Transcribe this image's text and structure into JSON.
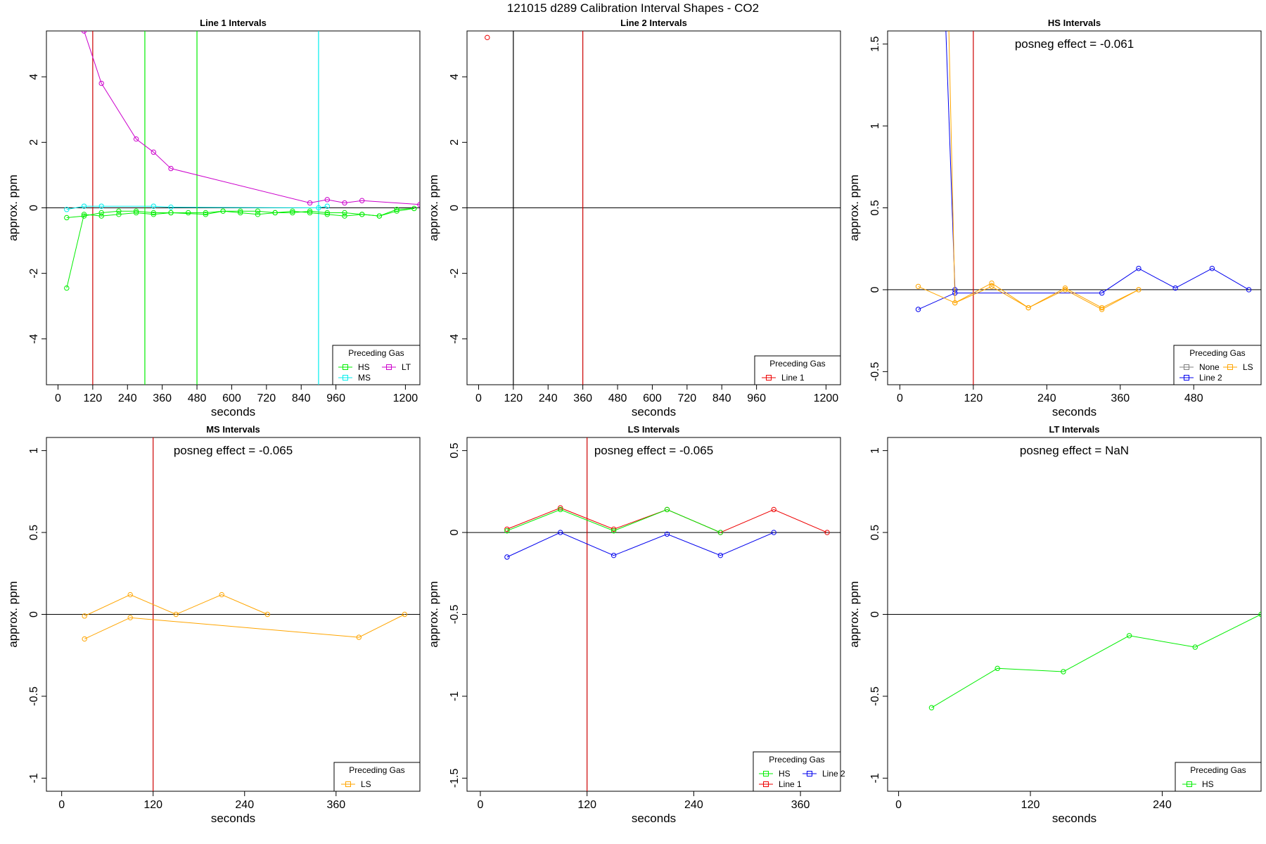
{
  "figure": {
    "title": "121015  d289   Calibration Interval Shapes - CO2"
  },
  "colors": {
    "HS": "#00ee00",
    "MS": "#00eeee",
    "LT": "#cc00cc",
    "LS": "#ffa500",
    "Line 1": "#ee0000",
    "Line 2": "#0000ee",
    "None": "#808080",
    "refline": "#cc0000",
    "hline": "#000000"
  },
  "chart_data": [
    {
      "type": "line",
      "title": "Line 1 Intervals",
      "xlabel": "seconds",
      "ylabel": "approx. ppm",
      "xlim": [
        -40,
        1250
      ],
      "ylim": [
        -5.4,
        5.4
      ],
      "xticks": [
        0,
        120,
        240,
        360,
        480,
        600,
        720,
        840,
        960,
        1200
      ],
      "yticks": [
        -4,
        -2,
        0,
        2,
        4
      ],
      "hline": 0,
      "vlines": [
        {
          "x": 120,
          "color": "refline"
        },
        {
          "x": 300,
          "color": "HS"
        },
        {
          "x": 480,
          "color": "HS"
        },
        {
          "x": 900,
          "color": "MS"
        }
      ],
      "series": [
        {
          "name": "LT",
          "color": "LT",
          "x": [
            90,
            150,
            270,
            330,
            390,
            870,
            930,
            990,
            1050,
            1250
          ],
          "y": [
            5.4,
            3.8,
            2.1,
            1.7,
            1.2,
            0.15,
            0.25,
            0.15,
            0.22,
            0.1
          ]
        },
        {
          "name": "MS",
          "color": "MS",
          "x": [
            30,
            90,
            150,
            330,
            390,
            900,
            930
          ],
          "y": [
            -0.05,
            0.05,
            0.05,
            0.05,
            0.02,
            0.0,
            0.05
          ]
        },
        {
          "name": "HS",
          "color": "HS",
          "x": [
            30,
            90,
            150,
            210,
            270,
            330,
            390,
            510,
            570,
            630,
            690,
            750,
            810,
            870,
            930,
            990,
            1050,
            1110,
            1170,
            1230
          ],
          "y": [
            -2.45,
            -0.2,
            -0.25,
            -0.2,
            -0.15,
            -0.2,
            -0.15,
            -0.2,
            -0.1,
            -0.15,
            -0.2,
            -0.15,
            -0.1,
            -0.15,
            -0.2,
            -0.25,
            -0.2,
            -0.25,
            -0.1,
            -0.02
          ]
        },
        {
          "name": "HS",
          "color": "HS",
          "x": [
            30,
            90,
            150,
            210,
            270,
            330,
            390,
            450,
            510,
            570,
            630,
            690,
            750,
            810,
            870,
            930,
            990,
            1050,
            1110,
            1170,
            1230
          ],
          "y": [
            -0.3,
            -0.25,
            -0.15,
            -0.1,
            -0.1,
            -0.15,
            -0.15,
            -0.15,
            -0.15,
            -0.1,
            -0.1,
            -0.1,
            -0.15,
            -0.15,
            -0.1,
            -0.15,
            -0.15,
            -0.2,
            -0.25,
            -0.05,
            -0.02
          ]
        }
      ],
      "legend": {
        "title": "Preceding Gas",
        "position": "bottom-right",
        "rows": [
          [
            "HS",
            "LT"
          ],
          [
            "MS"
          ]
        ]
      },
      "annotation": ""
    },
    {
      "type": "line",
      "title": "Line 2 Intervals",
      "xlabel": "seconds",
      "ylabel": "approx. ppm",
      "xlim": [
        -40,
        1250
      ],
      "ylim": [
        -5.4,
        5.4
      ],
      "xticks": [
        0,
        120,
        240,
        360,
        480,
        600,
        720,
        840,
        960,
        1200
      ],
      "yticks": [
        -4,
        -2,
        0,
        2,
        4
      ],
      "hline": 0,
      "vlines": [
        {
          "x": 120,
          "color": "hline"
        },
        {
          "x": 360,
          "color": "refline"
        }
      ],
      "series": [
        {
          "name": "Line 1",
          "color": "Line 1",
          "x": [
            30
          ],
          "y": [
            5.2
          ]
        }
      ],
      "legend": {
        "title": "Preceding Gas",
        "position": "bottom-right",
        "rows": [
          [
            "Line 1"
          ]
        ]
      },
      "annotation": ""
    },
    {
      "type": "line",
      "title": "HS Intervals",
      "xlabel": "seconds",
      "ylabel": "approx. ppm",
      "xlim": [
        -20,
        590
      ],
      "ylim": [
        -0.58,
        1.58
      ],
      "xticks": [
        0,
        120,
        240,
        360,
        480
      ],
      "yticks": [
        -0.5,
        0.0,
        0.5,
        1.0,
        1.5
      ],
      "hline": 0,
      "vlines": [
        {
          "x": 120,
          "color": "refline"
        }
      ],
      "series": [
        {
          "name": "Line 2",
          "color": "Line 2",
          "x": [
            30,
            90,
            330,
            390,
            450,
            510,
            570
          ],
          "y": [
            -0.12,
            -0.02,
            -0.02,
            0.13,
            0.01,
            0.13,
            0.0
          ]
        },
        {
          "name": "Line 2",
          "color": "Line 2",
          "x": [
            75,
            90
          ],
          "y": [
            1.6,
            0.0
          ]
        },
        {
          "name": "LS",
          "color": "LS",
          "x": [
            30,
            90,
            150,
            210,
            270,
            330,
            390
          ],
          "y": [
            0.02,
            -0.08,
            0.04,
            -0.11,
            0.01,
            -0.11,
            0.0
          ]
        },
        {
          "name": "LS",
          "color": "LS",
          "x": [
            80,
            90,
            150,
            210,
            270,
            330,
            390
          ],
          "y": [
            1.6,
            -0.08,
            0.02,
            -0.11,
            0.0,
            -0.12,
            0.0
          ]
        }
      ],
      "legend": {
        "title": "Preceding Gas",
        "position": "bottom-right",
        "rows": [
          [
            "None",
            "LS"
          ],
          [
            "Line 2"
          ]
        ]
      },
      "annotation": "posneg effect = -0.061"
    },
    {
      "type": "line",
      "title": "MS Intervals",
      "xlabel": "seconds",
      "ylabel": "approx. ppm",
      "xlim": [
        -20,
        470
      ],
      "ylim": [
        -1.08,
        1.08
      ],
      "xticks": [
        0,
        120,
        240,
        360
      ],
      "yticks": [
        -1.0,
        -0.5,
        0.0,
        0.5,
        1.0
      ],
      "hline": 0,
      "vlines": [
        {
          "x": 120,
          "color": "refline"
        }
      ],
      "series": [
        {
          "name": "LS",
          "color": "LS",
          "x": [
            30,
            90,
            150,
            210,
            270
          ],
          "y": [
            -0.01,
            0.12,
            0.0,
            0.12,
            0.0
          ]
        },
        {
          "name": "LS",
          "color": "LS",
          "x": [
            30,
            90,
            390,
            450
          ],
          "y": [
            -0.15,
            -0.02,
            -0.14,
            0.0
          ]
        }
      ],
      "legend": {
        "title": "Preceding Gas",
        "position": "bottom-right",
        "rows": [
          [
            "LS"
          ]
        ]
      },
      "annotation": "posneg effect = -0.065"
    },
    {
      "type": "line",
      "title": "LS Intervals",
      "xlabel": "seconds",
      "ylabel": "approx. ppm",
      "xlim": [
        -15,
        405
      ],
      "ylim": [
        -1.58,
        0.58
      ],
      "xticks": [
        0,
        120,
        240,
        360
      ],
      "yticks": [
        -1.5,
        -1.0,
        -0.5,
        0.0,
        0.5
      ],
      "hline": 0,
      "vlines": [
        {
          "x": 120,
          "color": "refline"
        }
      ],
      "series": [
        {
          "name": "Line 1",
          "color": "Line 1",
          "x": [
            30,
            90,
            150,
            210,
            270,
            330,
            390
          ],
          "y": [
            0.02,
            0.15,
            0.02,
            0.14,
            0.0,
            0.14,
            0.0
          ]
        },
        {
          "name": "HS",
          "color": "HS",
          "x": [
            30,
            90,
            150,
            210,
            270
          ],
          "y": [
            0.01,
            0.14,
            0.01,
            0.14,
            0.0
          ]
        },
        {
          "name": "Line 2",
          "color": "Line 2",
          "x": [
            30,
            90,
            150,
            210,
            270,
            330
          ],
          "y": [
            -0.15,
            0.0,
            -0.14,
            -0.01,
            -0.14,
            0.0
          ]
        }
      ],
      "legend": {
        "title": "Preceding Gas",
        "position": "bottom-right",
        "rows": [
          [
            "HS",
            "Line 2"
          ],
          [
            "Line 1"
          ]
        ]
      },
      "annotation": "posneg effect = -0.065"
    },
    {
      "type": "line",
      "title": "LT Intervals",
      "xlabel": "seconds",
      "ylabel": "approx. ppm",
      "xlim": [
        -10,
        330
      ],
      "ylim": [
        -1.08,
        1.08
      ],
      "xticks": [
        0,
        120,
        240
      ],
      "yticks": [
        -1.0,
        -0.5,
        0.0,
        0.5,
        1.0
      ],
      "hline": 0,
      "vlines": [],
      "series": [
        {
          "name": "HS",
          "color": "HS",
          "x": [
            30,
            90,
            150,
            210,
            270,
            330
          ],
          "y": [
            -0.57,
            -0.33,
            -0.35,
            -0.13,
            -0.2,
            0.0
          ]
        }
      ],
      "legend": {
        "title": "Preceding Gas",
        "position": "bottom-right",
        "rows": [
          [
            "HS"
          ]
        ]
      },
      "annotation": "posneg effect = NaN"
    }
  ]
}
